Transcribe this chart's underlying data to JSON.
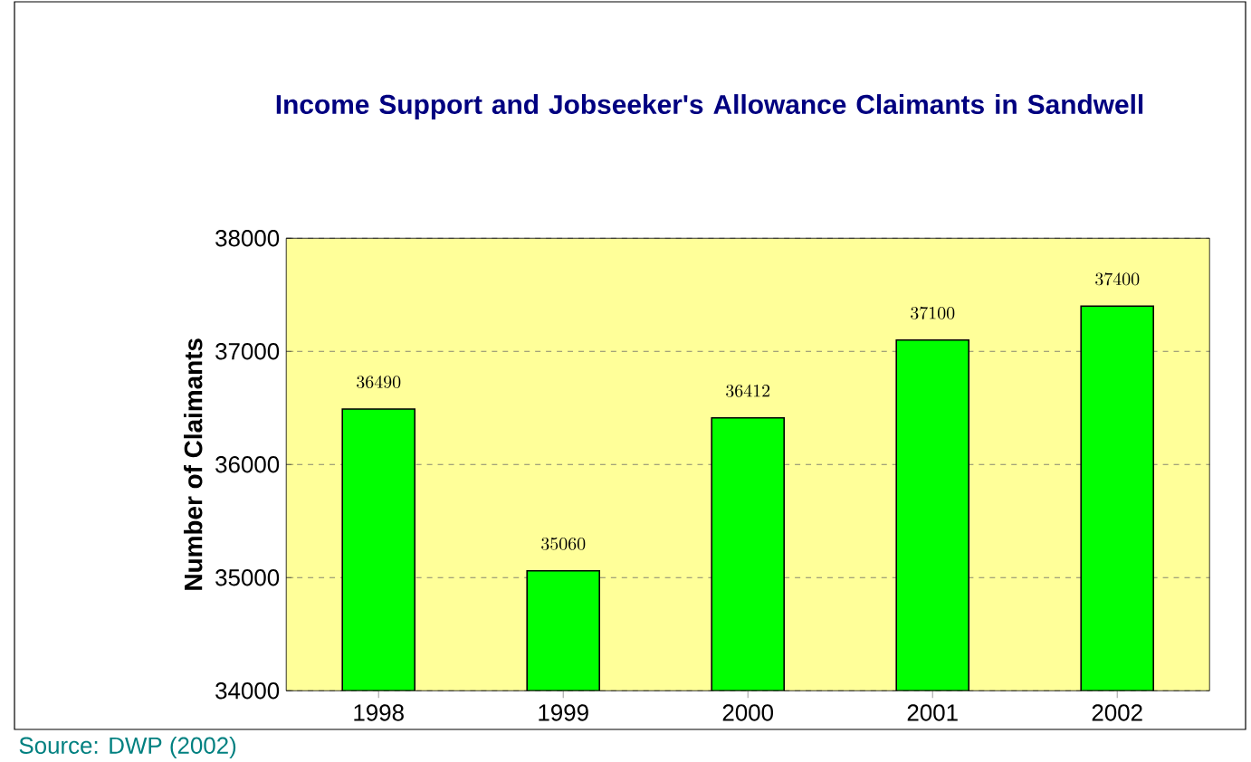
{
  "chart_data": {
    "type": "bar",
    "title": "Income Support and Jobseeker's Allowance Claimants in Sandwell",
    "ylabel": "Number of Claimants",
    "categories": [
      "1998",
      "1999",
      "2000",
      "2001",
      "2002"
    ],
    "values": [
      36490,
      35060,
      36412,
      37100,
      37400
    ],
    "color": "#00ff00",
    "ylim": [
      34000,
      38000
    ],
    "yticks": [
      34000,
      35000,
      36000,
      37000,
      38000
    ],
    "grid": "y",
    "data_labels": true,
    "annotations": [
      "Source: DWP (2002)"
    ]
  }
}
